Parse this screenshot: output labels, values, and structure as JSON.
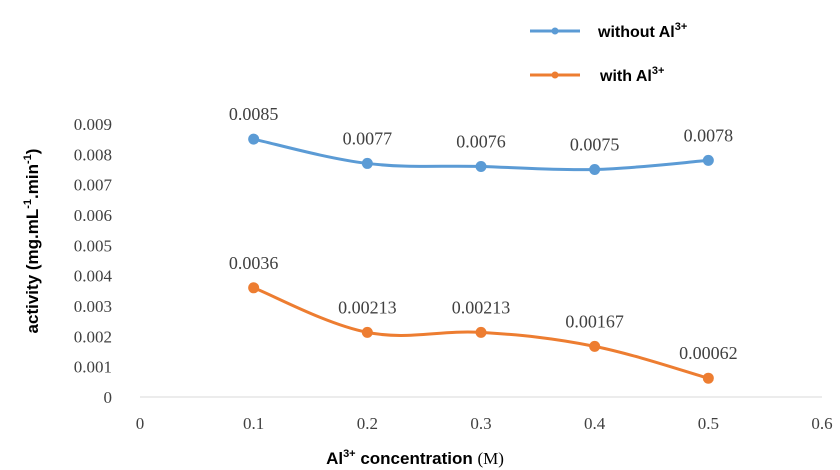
{
  "chart_data": {
    "type": "line",
    "x": [
      0.1,
      0.2,
      0.3,
      0.4,
      0.5
    ],
    "xlim": [
      0,
      0.6
    ],
    "ylim": [
      0,
      0.009
    ],
    "x_ticks": [
      "0",
      "0.1",
      "0.2",
      "0.3",
      "0.4",
      "0.5",
      "0.6"
    ],
    "y_ticks": [
      "0",
      "0.001",
      "0.002",
      "0.003",
      "0.004",
      "0.005",
      "0.006",
      "0.007",
      "0.008",
      "0.009"
    ],
    "xlabel": {
      "main": "Al",
      "sup": "3+",
      "rest": " concentration ",
      "unit": "(M)"
    },
    "ylabel": {
      "text": "activity (mg.mL",
      "sup1": "-1",
      "mid": ".min",
      "sup2": "-1",
      "end": ")"
    },
    "grid": false,
    "legend_position": "top-right",
    "series": [
      {
        "legend": {
          "text": "without Al",
          "sup": "3+"
        },
        "color": "#5b9bd5",
        "values": [
          0.0085,
          0.0077,
          0.0076,
          0.0075,
          0.0078
        ],
        "labels": [
          "0.0085",
          "0.0077",
          "0.0076",
          "0.0075",
          "0.0078"
        ]
      },
      {
        "legend": {
          "text": "with Al",
          "sup": "3+"
        },
        "color": "#ed7d31",
        "values": [
          0.0036,
          0.00213,
          0.00213,
          0.00167,
          0.00062
        ],
        "labels": [
          "0.0036",
          "0.00213",
          "0.00213",
          "0.00167",
          "0.00062"
        ]
      }
    ]
  }
}
